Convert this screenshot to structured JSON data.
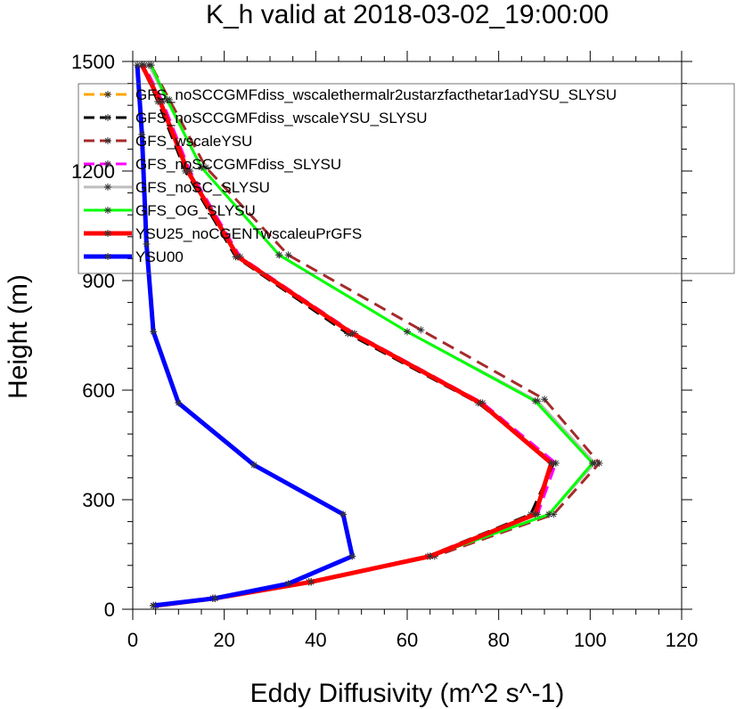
{
  "chart_data": {
    "type": "line",
    "title": "K_h valid at 2018-03-02_19:00:00",
    "xlabel": "Eddy Diffusivity (m^2 s^-1)",
    "ylabel": "Height (m)",
    "xlim": [
      0,
      120
    ],
    "ylim": [
      0,
      1500
    ],
    "xticks": [
      "0",
      "20",
      "40",
      "60",
      "80",
      "100",
      "120"
    ],
    "yticks": [
      "0",
      "300",
      "600",
      "900",
      "1200",
      "1500"
    ],
    "legend_position": "top-right",
    "grid": false,
    "series": [
      {
        "name": "GFS_noSCCGMFdiss_wscalethermalr2ustarzfacthetar1adYSU_SLYSU",
        "color": "#ffa500",
        "dash": "dashed",
        "x": [
          5,
          18,
          39,
          65,
          88,
          92,
          76,
          48,
          23,
          12,
          6,
          2
        ],
        "y": [
          10,
          30,
          75,
          145,
          260,
          400,
          565,
          755,
          965,
          1200,
          1390,
          1490
        ]
      },
      {
        "name": "GFS_noSCCGMFdiss_wscaleYSU_SLYSU",
        "color": "#000000",
        "dash": "dashed",
        "x": [
          4.5,
          17.5,
          38.5,
          64.5,
          87,
          92,
          75.5,
          47,
          22.5,
          11.5,
          5.5,
          2
        ],
        "y": [
          10,
          30,
          75,
          145,
          260,
          400,
          565,
          755,
          965,
          1200,
          1390,
          1490
        ]
      },
      {
        "name": "GFS_wscaleYSU",
        "color": "#a52a2a",
        "dash": "dashed",
        "x": [
          5,
          18,
          39,
          66,
          92,
          102,
          90,
          63,
          34,
          16,
          8,
          4
        ],
        "y": [
          10,
          30,
          75,
          145,
          260,
          400,
          575,
          765,
          970,
          1210,
          1395,
          1490
        ]
      },
      {
        "name": "GFS_noSCCGMFdiss_SLYSU",
        "color": "#ff00ff",
        "dash": "dashed",
        "x": [
          5,
          18,
          39,
          65,
          88.5,
          92.5,
          76.5,
          48.5,
          23.5,
          12.5,
          6.5,
          2.5
        ],
        "y": [
          10,
          30,
          75,
          145,
          260,
          400,
          565,
          755,
          965,
          1200,
          1390,
          1490
        ]
      },
      {
        "name": "GFS_noSC_SLYSU",
        "color": "#bebebe",
        "dash": "solid",
        "x": [
          4.5,
          17.5,
          38.5,
          65,
          91,
          101,
          88.5,
          60,
          32,
          15,
          7.5,
          3.5
        ],
        "y": [
          10,
          30,
          75,
          145,
          260,
          400,
          570,
          760,
          970,
          1210,
          1395,
          1490
        ]
      },
      {
        "name": "GFS_OG_SLYSU",
        "color": "#00ff00",
        "dash": "solid",
        "x": [
          4.5,
          17.5,
          38.5,
          65,
          91,
          100.5,
          88,
          60,
          32,
          15,
          7.5,
          4
        ],
        "y": [
          10,
          30,
          75,
          145,
          260,
          400,
          570,
          760,
          970,
          1210,
          1395,
          1490
        ]
      },
      {
        "name": "YSU25_noCGENTwscaleuPrGFS",
        "color": "#ff0000",
        "dash": "solid",
        "x": [
          5,
          18,
          39,
          65,
          88,
          91.5,
          76,
          48,
          23,
          12,
          6,
          2
        ],
        "y": [
          10,
          30,
          75,
          145,
          260,
          400,
          565,
          755,
          965,
          1200,
          1390,
          1490
        ]
      },
      {
        "name": "YSU00",
        "color": "#0000ff",
        "dash": "solid",
        "x": [
          4.5,
          18,
          34,
          48,
          46,
          26.5,
          10,
          4.5,
          3,
          2,
          1
        ],
        "y": [
          10,
          30,
          70,
          145,
          260,
          395,
          565,
          760,
          1000,
          1300,
          1490
        ]
      }
    ]
  }
}
